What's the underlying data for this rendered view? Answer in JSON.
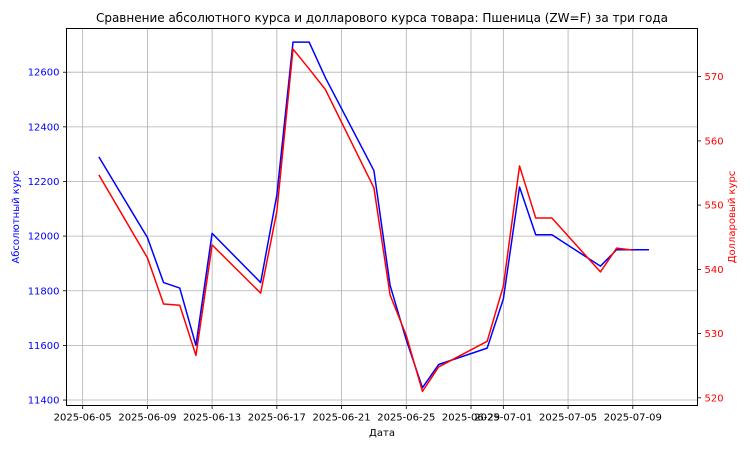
{
  "chart_data": {
    "type": "line",
    "title": "Сравнение абсолютного курса и долларового курса товара: Пшеница (ZW=F) за три года",
    "xlabel": "Дата",
    "ylabel_left": "Абсолютный курс",
    "ylabel_right": "Долларовый курс",
    "grid": true,
    "xlim": [
      "2025-06-04",
      "2025-07-13"
    ],
    "ylim_left": [
      11380,
      12760
    ],
    "ylim_right": [
      518.8,
      577.5
    ],
    "x_ticks": [
      "2025-06-05",
      "2025-06-09",
      "2025-06-13",
      "2025-06-17",
      "2025-06-21",
      "2025-06-25",
      "2025-06-29",
      "2025-07-01",
      "2025-07-05",
      "2025-07-09"
    ],
    "y_ticks_left": [
      11400,
      11600,
      11800,
      12000,
      12200,
      12400,
      12600
    ],
    "y_ticks_right": [
      520,
      530,
      540,
      550,
      560,
      570
    ],
    "colors": {
      "absolute": "#0000ff",
      "dollar": "#ff0000"
    },
    "series": [
      {
        "axis": "left",
        "color": "#0000ff",
        "points": [
          [
            "2025-06-06",
            12290
          ],
          [
            "2025-06-09",
            11995
          ],
          [
            "2025-06-10",
            11830
          ],
          [
            "2025-06-11",
            11810
          ],
          [
            "2025-06-12",
            11600
          ],
          [
            "2025-06-13",
            12010
          ],
          [
            "2025-06-16",
            11830
          ],
          [
            "2025-06-17",
            12150
          ],
          [
            "2025-06-18",
            12710
          ],
          [
            "2025-06-19",
            12710
          ],
          [
            "2025-06-20",
            12580
          ],
          [
            "2025-06-23",
            12240
          ],
          [
            "2025-06-24",
            11820
          ],
          [
            "2025-06-25",
            11620
          ],
          [
            "2025-06-26",
            11445
          ],
          [
            "2025-06-27",
            11530
          ],
          [
            "2025-06-30",
            11590
          ],
          [
            "2025-07-01",
            11770
          ],
          [
            "2025-07-02",
            12180
          ],
          [
            "2025-07-03",
            12005
          ],
          [
            "2025-07-04",
            12005
          ],
          [
            "2025-07-07",
            11890
          ],
          [
            "2025-07-08",
            11950
          ],
          [
            "2025-07-09",
            11950
          ],
          [
            "2025-07-10",
            11950
          ]
        ]
      },
      {
        "axis": "right",
        "color": "#ff0000",
        "points": [
          [
            "2025-06-06",
            554.7
          ],
          [
            "2025-06-09",
            541.8
          ],
          [
            "2025-06-10",
            534.6
          ],
          [
            "2025-06-11",
            534.4
          ],
          [
            "2025-06-12",
            526.6
          ],
          [
            "2025-06-13",
            543.8
          ],
          [
            "2025-06-16",
            536.3
          ],
          [
            "2025-06-17",
            549.0
          ],
          [
            "2025-06-18",
            574.3
          ],
          [
            "2025-06-19",
            571.2
          ],
          [
            "2025-06-20",
            568.0
          ],
          [
            "2025-06-23",
            552.7
          ],
          [
            "2025-06-24",
            536.0
          ],
          [
            "2025-06-25",
            529.7
          ],
          [
            "2025-06-26",
            521.0
          ],
          [
            "2025-06-27",
            524.8
          ],
          [
            "2025-06-30",
            528.8
          ],
          [
            "2025-07-01",
            537.4
          ],
          [
            "2025-07-02",
            556.1
          ],
          [
            "2025-07-03",
            548.0
          ],
          [
            "2025-07-04",
            548.0
          ],
          [
            "2025-07-07",
            539.6
          ],
          [
            "2025-07-08",
            543.3
          ],
          [
            "2025-07-09",
            543.0
          ]
        ]
      }
    ]
  }
}
